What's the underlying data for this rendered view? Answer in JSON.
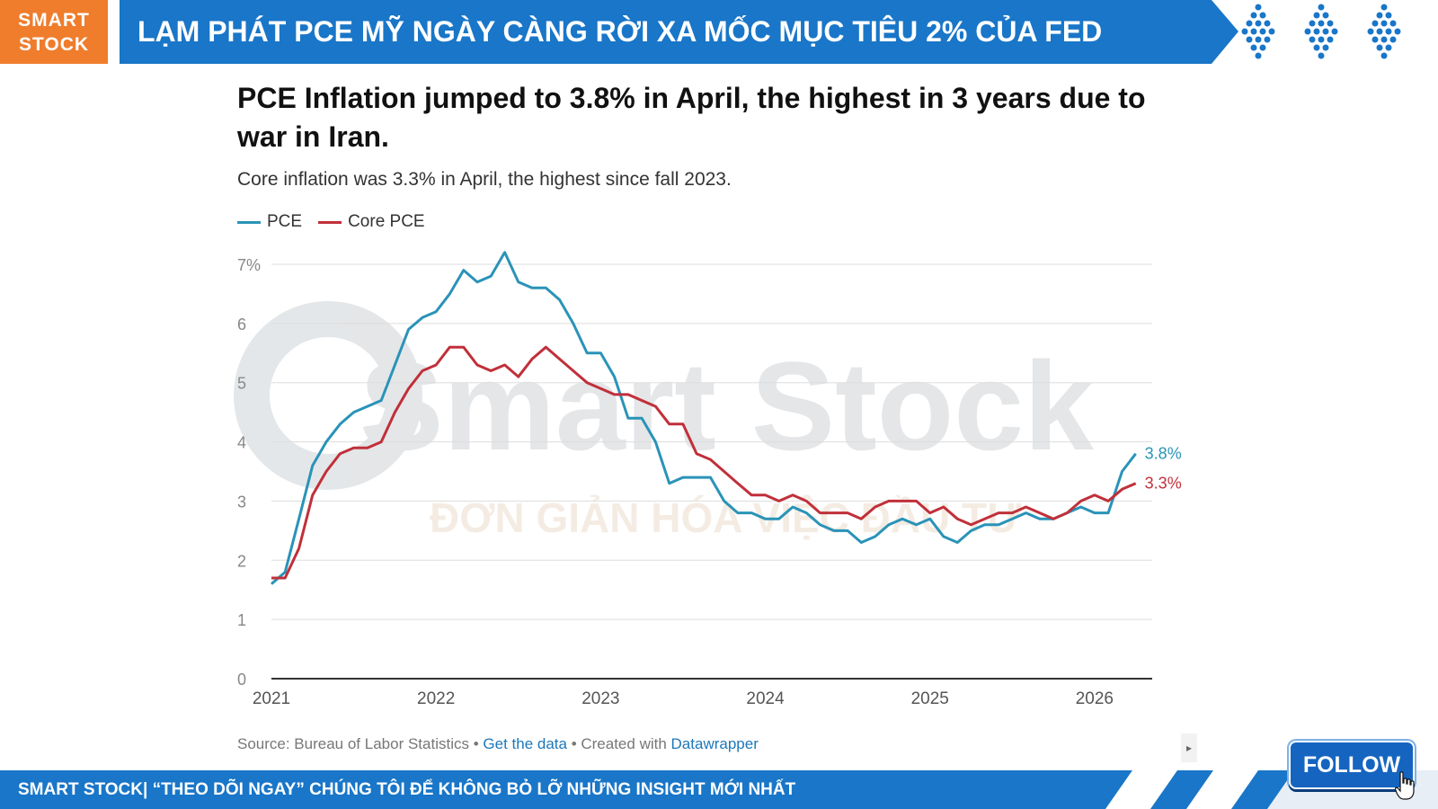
{
  "header": {
    "logo_line1": "SMART",
    "logo_line2": "STOCK",
    "title": "LẠM PHÁT PCE MỸ NGÀY CÀNG RỜI XA MỐC MỤC TIÊU 2% CỦA FED"
  },
  "chart_data": {
    "type": "line",
    "title": "PCE Inflation jumped to 3.8% in April, the highest in 3 years due to war in Iran.",
    "subtitle": "Core inflation was 3.3% in April, the highest since fall 2023.",
    "xlabel": "",
    "ylabel": "",
    "xlim": [
      2021,
      2026.35
    ],
    "ylim": [
      0,
      7
    ],
    "y_ticks": [
      0,
      1,
      2,
      3,
      4,
      5,
      6,
      7
    ],
    "y_tick_labels": [
      "0",
      "1",
      "2",
      "3",
      "4",
      "5",
      "6",
      "7%"
    ],
    "x_ticks": [
      2021,
      2022,
      2023,
      2024,
      2025,
      2026
    ],
    "x_tick_labels": [
      "2021",
      "2022",
      "2023",
      "2024",
      "2025",
      "2026"
    ],
    "grid": true,
    "legend_position": "top-left",
    "series": [
      {
        "name": "PCE",
        "color": "#2a93b8",
        "end_label": "3.8%",
        "x": [
          2021.0,
          2021.083,
          2021.167,
          2021.25,
          2021.333,
          2021.417,
          2021.5,
          2021.583,
          2021.667,
          2021.75,
          2021.833,
          2021.917,
          2022.0,
          2022.083,
          2022.167,
          2022.25,
          2022.333,
          2022.417,
          2022.5,
          2022.583,
          2022.667,
          2022.75,
          2022.833,
          2022.917,
          2023.0,
          2023.083,
          2023.167,
          2023.25,
          2023.333,
          2023.417,
          2023.5,
          2023.583,
          2023.667,
          2023.75,
          2023.833,
          2023.917,
          2024.0,
          2024.083,
          2024.167,
          2024.25,
          2024.333,
          2024.417,
          2024.5,
          2024.583,
          2024.667,
          2024.75,
          2024.833,
          2024.917,
          2025.0,
          2025.083,
          2025.167,
          2025.25,
          2025.333,
          2025.417,
          2025.5,
          2025.583,
          2025.667,
          2025.75,
          2025.833,
          2025.917,
          2026.0,
          2026.083,
          2026.167,
          2026.25
        ],
        "values": [
          1.6,
          1.8,
          2.7,
          3.6,
          4.0,
          4.3,
          4.5,
          4.6,
          4.7,
          5.3,
          5.9,
          6.1,
          6.2,
          6.5,
          6.9,
          6.7,
          6.8,
          7.2,
          6.7,
          6.6,
          6.6,
          6.4,
          6.0,
          5.5,
          5.5,
          5.1,
          4.4,
          4.4,
          4.0,
          3.3,
          3.4,
          3.4,
          3.4,
          3.0,
          2.8,
          2.8,
          2.7,
          2.7,
          2.9,
          2.8,
          2.6,
          2.5,
          2.5,
          2.3,
          2.4,
          2.6,
          2.7,
          2.6,
          2.7,
          2.4,
          2.3,
          2.5,
          2.6,
          2.6,
          2.7,
          2.8,
          2.7,
          2.7,
          2.8,
          2.9,
          2.8,
          2.8,
          3.5,
          3.8
        ]
      },
      {
        "name": "Core PCE",
        "color": "#c0303a",
        "end_label": "3.3%",
        "x": [
          2021.0,
          2021.083,
          2021.167,
          2021.25,
          2021.333,
          2021.417,
          2021.5,
          2021.583,
          2021.667,
          2021.75,
          2021.833,
          2021.917,
          2022.0,
          2022.083,
          2022.167,
          2022.25,
          2022.333,
          2022.417,
          2022.5,
          2022.583,
          2022.667,
          2022.75,
          2022.833,
          2022.917,
          2023.0,
          2023.083,
          2023.167,
          2023.25,
          2023.333,
          2023.417,
          2023.5,
          2023.583,
          2023.667,
          2023.75,
          2023.833,
          2023.917,
          2024.0,
          2024.083,
          2024.167,
          2024.25,
          2024.333,
          2024.417,
          2024.5,
          2024.583,
          2024.667,
          2024.75,
          2024.833,
          2024.917,
          2025.0,
          2025.083,
          2025.167,
          2025.25,
          2025.333,
          2025.417,
          2025.5,
          2025.583,
          2025.667,
          2025.75,
          2025.833,
          2025.917,
          2026.0,
          2026.083,
          2026.167,
          2026.25
        ],
        "values": [
          1.7,
          1.7,
          2.2,
          3.1,
          3.5,
          3.8,
          3.9,
          3.9,
          4.0,
          4.5,
          4.9,
          5.2,
          5.3,
          5.6,
          5.6,
          5.3,
          5.2,
          5.3,
          5.1,
          5.4,
          5.6,
          5.4,
          5.2,
          5.0,
          4.9,
          4.8,
          4.8,
          4.7,
          4.6,
          4.3,
          4.3,
          3.8,
          3.7,
          3.5,
          3.3,
          3.1,
          3.1,
          3.0,
          3.1,
          3.0,
          2.8,
          2.8,
          2.8,
          2.7,
          2.9,
          3.0,
          3.0,
          3.0,
          2.8,
          2.9,
          2.7,
          2.6,
          2.7,
          2.8,
          2.8,
          2.9,
          2.8,
          2.7,
          2.8,
          3.0,
          3.1,
          3.0,
          3.2,
          3.3
        ]
      }
    ]
  },
  "source": {
    "prefix": "Source: Bureau of Labor Statistics",
    "sep1": " • ",
    "get_data": "Get the data",
    "sep2": " • Created with ",
    "datawrapper": "Datawrapper"
  },
  "footer": {
    "text": "SMART STOCK| “THEO DÕI NGAY” CHÚNG TÔI ĐỂ KHÔNG BỎ LỠ NHỮNG INSIGHT MỚI NHẤT",
    "follow_label": "FOLLOW"
  },
  "watermark": {
    "brand": "Smart Stock",
    "tagline": "ĐƠN GIẢN HÓA VIỆC ĐẦU TƯ"
  },
  "colors": {
    "orange": "#ef7d2c",
    "blue": "#1976c8",
    "grid": "#dddddd",
    "axis": "#333333",
    "tick_text": "#888888"
  }
}
